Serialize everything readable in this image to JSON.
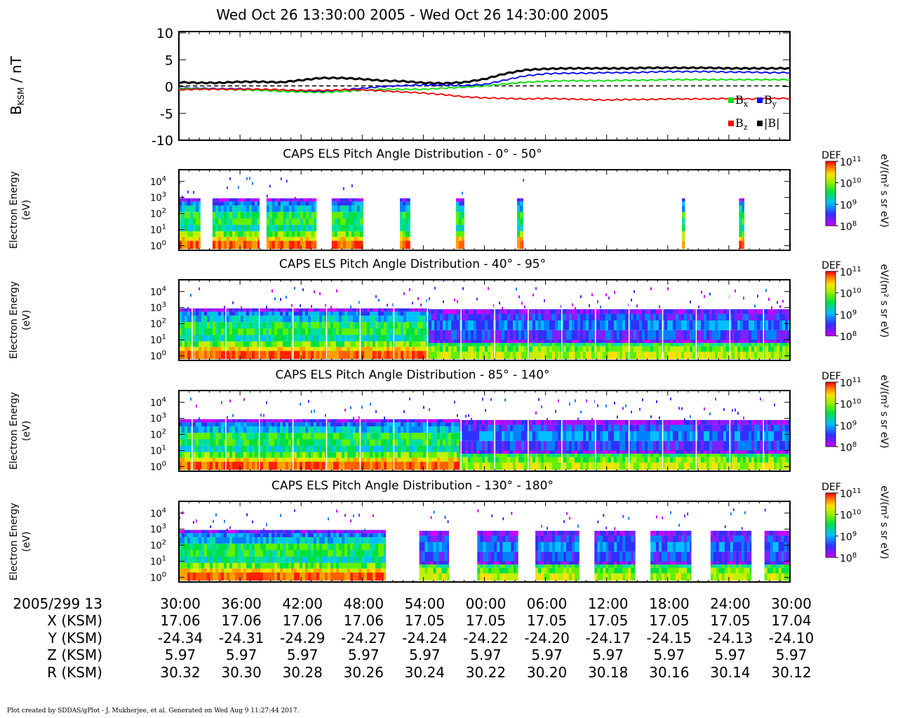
{
  "title": "Wed Oct 26 13:30:00 2005 - Wed Oct 26 14:30:00 2005",
  "footer": "Plot created by SDDAS/gPlot - J. Mukherjee, et al.  Generated on Wed Aug 9 11:27:44 2017.",
  "colors": {
    "bx": "#00e000",
    "by": "#0000ff",
    "bz": "#ff0000",
    "bmag": "#000000"
  },
  "chart_data": [
    {
      "type": "line",
      "ylabel_main": "B",
      "ylabel_sub": "KSM",
      "ylabel_unit": " / nT",
      "ylim": [
        -10,
        10
      ],
      "yticks": [
        "10",
        "5",
        "0",
        "-5",
        "-10"
      ],
      "zero_line": "dashed",
      "legend": {
        "placement": "bottom-right",
        "entries": [
          {
            "key": "bx",
            "label": "B",
            "sub": "x"
          },
          {
            "key": "by",
            "label": "B",
            "sub": "y"
          },
          {
            "key": "bz",
            "label": "B",
            "sub": "z"
          },
          {
            "key": "bmag",
            "label": "|B|",
            "sub": ""
          }
        ]
      },
      "x_minutes": [
        0,
        2,
        4,
        6,
        8,
        10,
        12,
        14,
        16,
        18,
        20,
        22,
        24,
        26,
        28,
        30,
        32,
        34,
        36,
        38,
        40,
        42,
        44,
        46,
        48,
        50,
        52,
        54,
        56,
        58,
        60
      ],
      "series": [
        {
          "key": "bmag",
          "values": [
            0.8,
            0.7,
            0.7,
            0.9,
            0.9,
            0.8,
            1.2,
            1.6,
            1.6,
            1.4,
            1.1,
            1.0,
            0.7,
            0.6,
            0.8,
            1.4,
            2.4,
            3.1,
            3.3,
            3.4,
            3.4,
            3.4,
            3.4,
            3.5,
            3.5,
            3.5,
            3.5,
            3.4,
            3.4,
            3.4,
            3.4
          ]
        },
        {
          "key": "by",
          "values": [
            -0.3,
            -0.3,
            -0.4,
            -0.4,
            -0.5,
            -0.6,
            -0.8,
            -0.9,
            -0.6,
            -0.3,
            0.0,
            0.2,
            0.3,
            0.3,
            0.2,
            0.4,
            1.2,
            2.0,
            2.4,
            2.5,
            2.5,
            2.6,
            2.6,
            2.7,
            2.8,
            2.8,
            2.8,
            2.7,
            2.7,
            2.6,
            2.6
          ]
        },
        {
          "key": "bx",
          "values": [
            -0.4,
            -0.4,
            -0.5,
            -0.6,
            -0.7,
            -0.9,
            -1.0,
            -1.1,
            -0.9,
            -0.7,
            -0.5,
            -0.5,
            -0.5,
            -0.3,
            -0.1,
            0.1,
            0.5,
            0.8,
            1.0,
            1.1,
            1.1,
            1.1,
            1.2,
            1.2,
            1.3,
            1.3,
            1.3,
            1.3,
            1.3,
            1.3,
            1.3
          ]
        },
        {
          "key": "bz",
          "values": [
            -0.6,
            -0.5,
            -0.5,
            -0.5,
            -0.5,
            -0.6,
            -0.7,
            -0.7,
            -0.6,
            -0.6,
            -0.8,
            -1.0,
            -1.2,
            -1.5,
            -1.9,
            -2.1,
            -2.2,
            -2.3,
            -2.2,
            -2.3,
            -2.4,
            -2.5,
            -2.4,
            -2.4,
            -2.3,
            -2.3,
            -2.3,
            -2.2,
            -2.3,
            -2.2,
            -2.2
          ]
        }
      ]
    },
    {
      "type": "heatmap",
      "title": "CAPS ELS Pitch Angle Distribution - 0° - 50°",
      "coverage": "sparse",
      "blocks": [
        [
          0,
          2.1
        ],
        [
          3.3,
          7.9
        ],
        [
          8.6,
          13.5
        ],
        [
          15.0,
          18.1
        ],
        [
          21.7,
          22.7
        ],
        [
          27.2,
          28.0
        ],
        [
          33.2,
          33.8
        ],
        [
          49.4,
          49.7
        ],
        [
          55.0,
          55.5
        ]
      ]
    },
    {
      "type": "heatmap",
      "title": "CAPS ELS Pitch Angle Distribution - 40° - 95°",
      "coverage": "full",
      "transition_minute": 24.4
    },
    {
      "type": "heatmap",
      "title": "CAPS ELS Pitch Angle Distribution - 85° - 140°",
      "coverage": "full",
      "transition_minute": 27.5
    },
    {
      "type": "heatmap",
      "title": "CAPS ELS Pitch Angle Distribution - 130° - 180°",
      "coverage": "gaps",
      "blocks": [
        [
          0,
          20.3
        ],
        [
          23.6,
          26.5
        ],
        [
          29.3,
          33.3
        ],
        [
          35.0,
          39.3
        ],
        [
          40.8,
          44.8
        ],
        [
          46.3,
          50.3
        ],
        [
          52.2,
          56.2
        ],
        [
          57.5,
          60
        ]
      ]
    }
  ],
  "spectrogram_axis": {
    "ylabel_line1": "Electron Energy",
    "ylabel_line2": "(eV)",
    "ticks": [
      {
        "base": "10",
        "exp": "4"
      },
      {
        "base": "10",
        "exp": "3"
      },
      {
        "base": "10",
        "exp": "2"
      },
      {
        "base": "10",
        "exp": "1"
      },
      {
        "base": "10",
        "exp": "0"
      }
    ]
  },
  "colorbar": {
    "label": "DEF",
    "units": "eV/(m² s sr eV)",
    "ticks": [
      {
        "base": "10",
        "exp": "11"
      },
      {
        "base": "10",
        "exp": "10"
      },
      {
        "base": "10",
        "exp": "9"
      },
      {
        "base": "10",
        "exp": "8"
      }
    ]
  },
  "ephemeris": {
    "row_labels": [
      "2005/299 13",
      "X (KSM)",
      "Y (KSM)",
      "Z (KSM)",
      "R (KSM)"
    ],
    "columns": [
      [
        "30:00",
        "17.06",
        "-24.34",
        "5.97",
        "30.32"
      ],
      [
        "36:00",
        "17.06",
        "-24.31",
        "5.97",
        "30.30"
      ],
      [
        "42:00",
        "17.06",
        "-24.29",
        "5.97",
        "30.28"
      ],
      [
        "48:00",
        "17.06",
        "-24.27",
        "5.97",
        "30.26"
      ],
      [
        "54:00",
        "17.05",
        "-24.24",
        "5.97",
        "30.24"
      ],
      [
        "00:00",
        "17.05",
        "-24.22",
        "5.97",
        "30.22"
      ],
      [
        "06:00",
        "17.05",
        "-24.20",
        "5.97",
        "30.20"
      ],
      [
        "12:00",
        "17.05",
        "-24.17",
        "5.97",
        "30.18"
      ],
      [
        "18:00",
        "17.05",
        "-24.15",
        "5.97",
        "30.16"
      ],
      [
        "24:00",
        "17.05",
        "-24.13",
        "5.97",
        "30.14"
      ],
      [
        "30:00",
        "17.04",
        "-24.10",
        "5.97",
        "30.12"
      ]
    ]
  }
}
